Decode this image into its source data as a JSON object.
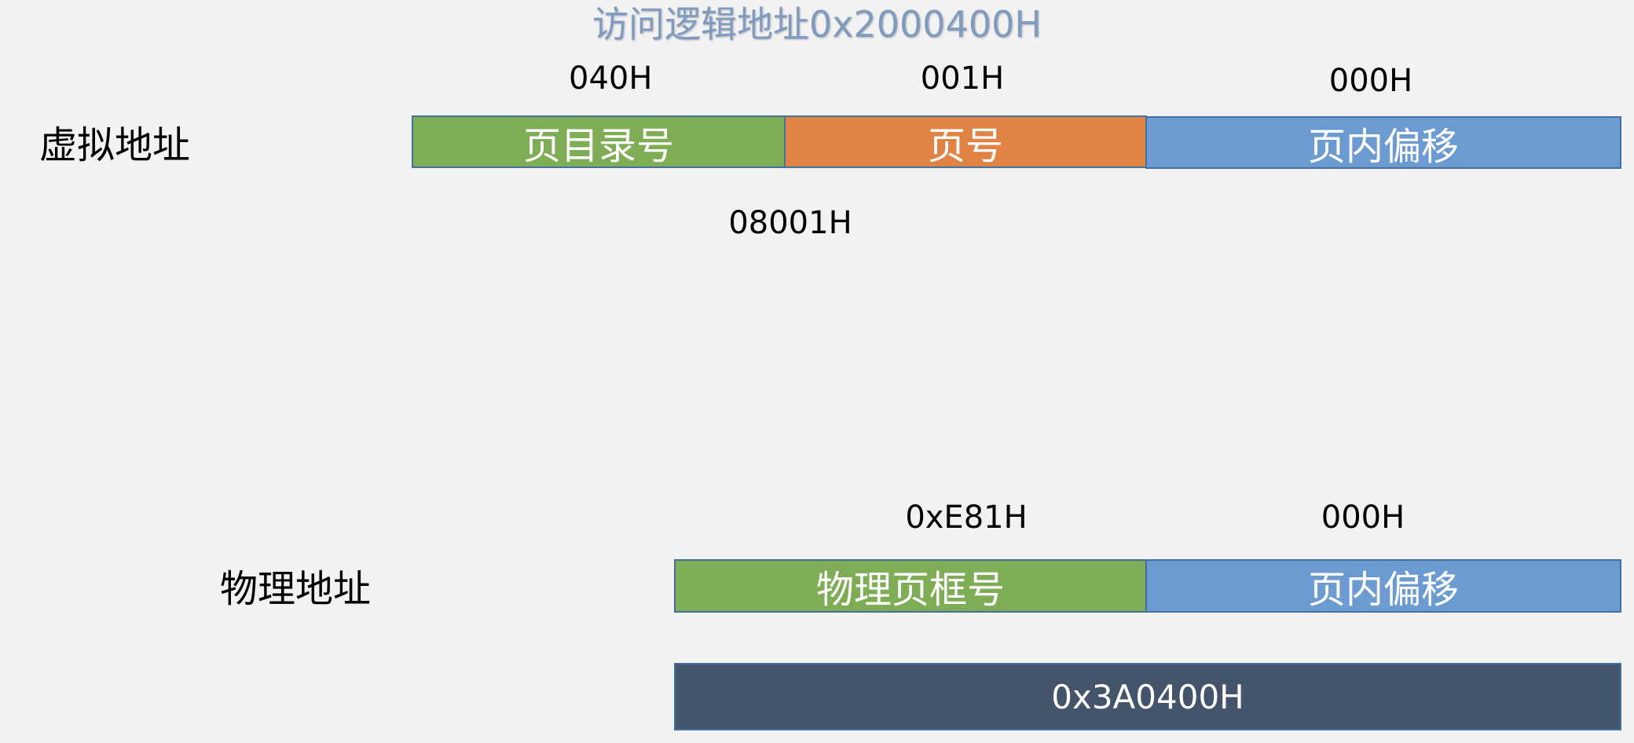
{
  "title": "访问逻辑地址0x2000400H",
  "colors": {
    "green": "#7fad56",
    "orange": "#e08344",
    "blue": "#6b9bd1",
    "navy": "#44546a",
    "border": "#41719c",
    "title": "#7f9cc0",
    "background": "#f2f2f2"
  },
  "virtual": {
    "label": "虚拟地址",
    "fields": [
      {
        "label": "页目录号",
        "value": "040H"
      },
      {
        "label": "页号",
        "value": "001H"
      },
      {
        "label": "页内偏移",
        "value": "000H"
      }
    ],
    "combined": "08001H"
  },
  "physical": {
    "label": "物理地址",
    "fields": [
      {
        "label": "物理页框号",
        "value": "0xE81H"
      },
      {
        "label": "页内偏移",
        "value": "000H"
      }
    ],
    "result": "0x3A0400H"
  }
}
